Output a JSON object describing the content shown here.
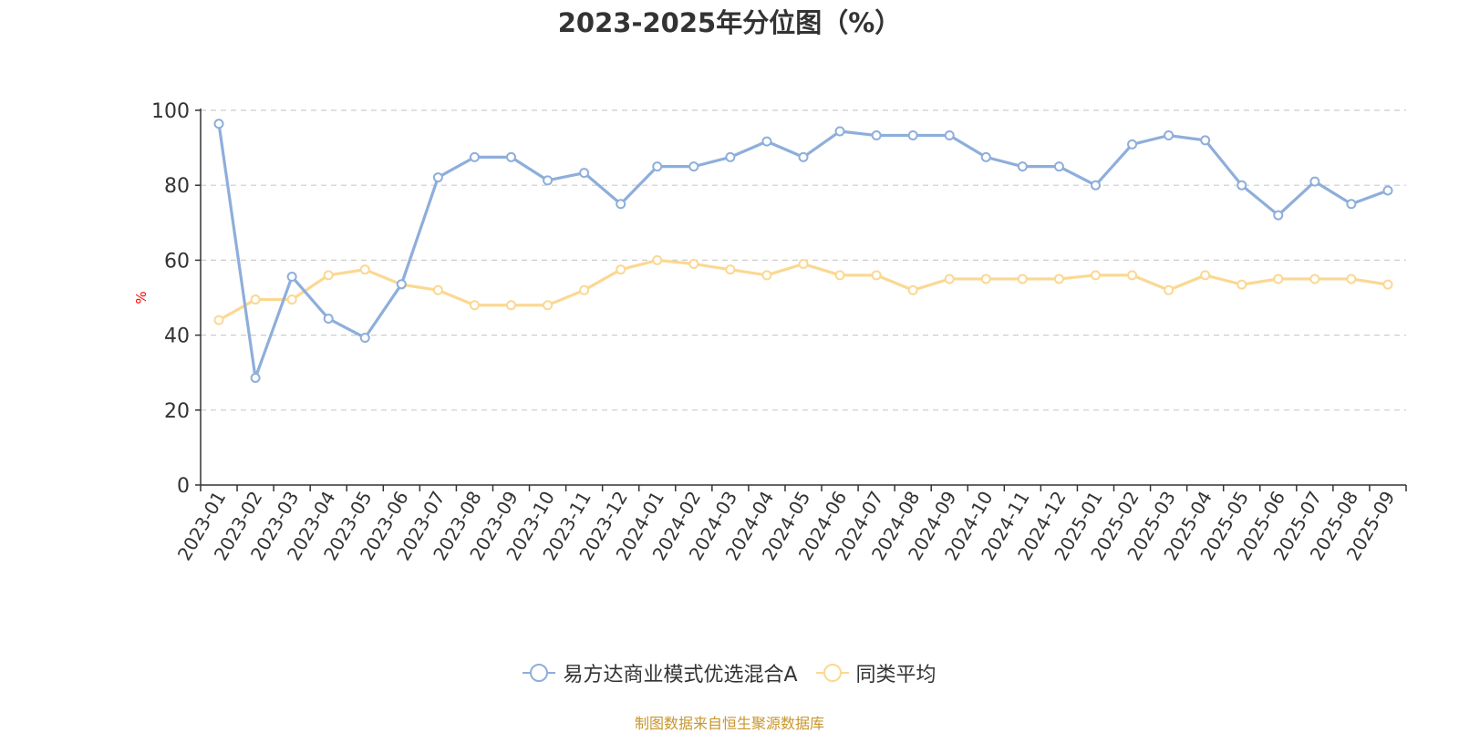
{
  "title": "2023-2025年分位图（%）",
  "source": "制图数据来自恒生聚源数据库",
  "colors": {
    "series_a": "#8eaedb",
    "series_b": "#fbd892",
    "axis": "#333333",
    "grid": "#cccccc",
    "ylabel": "#ff0000"
  },
  "chart_data": {
    "type": "line",
    "title": "2023-2025年分位图（%）",
    "xlabel": "",
    "ylabel": "%",
    "ylim": [
      0,
      100
    ],
    "yticks": [
      0,
      20,
      40,
      60,
      80,
      100
    ],
    "grid": true,
    "legend_position": "bottom",
    "categories": [
      "2023-01",
      "2023-02",
      "2023-03",
      "2023-04",
      "2023-05",
      "2023-06",
      "2023-07",
      "2023-08",
      "2023-09",
      "2023-10",
      "2023-11",
      "2023-12",
      "2024-01",
      "2024-02",
      "2024-03",
      "2024-04",
      "2024-05",
      "2024-06",
      "2024-07",
      "2024-08",
      "2024-09",
      "2024-10",
      "2024-11",
      "2024-12",
      "2025-01",
      "2025-02",
      "2025-03",
      "2025-04",
      "2025-05",
      "2025-06",
      "2025-07",
      "2025-08",
      "2025-09"
    ],
    "series": [
      {
        "name": "易方达商业模式优选混合A",
        "values": [
          96.4,
          28.6,
          55.6,
          44.4,
          39.3,
          53.6,
          82.1,
          87.5,
          87.5,
          81.3,
          83.3,
          75.0,
          85.0,
          85.0,
          87.5,
          91.7,
          87.5,
          94.4,
          93.3,
          93.3,
          93.3,
          87.5,
          85.0,
          85.0,
          80.0,
          90.9,
          93.3,
          92.0,
          80.0,
          72.0,
          81.0,
          75.0,
          78.6
        ]
      },
      {
        "name": "同类平均",
        "values": [
          44.0,
          49.5,
          49.5,
          56.0,
          57.5,
          53.5,
          52.0,
          48.0,
          48.0,
          48.0,
          52.0,
          57.5,
          60.0,
          59.0,
          57.5,
          56.0,
          59.0,
          56.0,
          56.0,
          52.0,
          55.0,
          55.0,
          55.0,
          55.0,
          56.0,
          56.0,
          52.0,
          56.0,
          53.5,
          55.0,
          55.0,
          55.0,
          53.5
        ]
      }
    ]
  }
}
